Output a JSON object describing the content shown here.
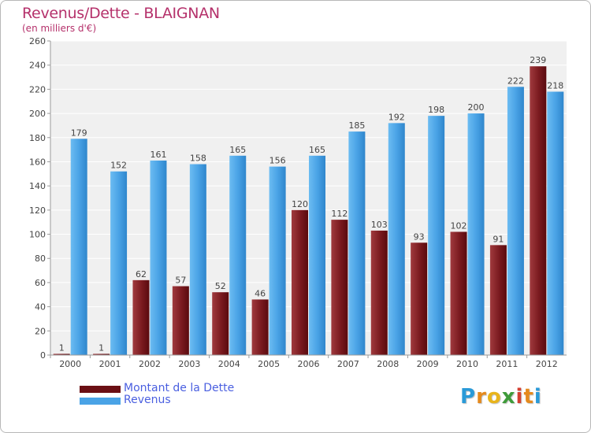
{
  "title": "Revenus/Dette - BLAIGNAN",
  "subtitle": "(en milliers d'€)",
  "logo_text": "Proxiti",
  "colors": {
    "dette": "#7a1a1f",
    "revenus": "#4aa3e6",
    "title": "#b5316b",
    "legend_text": "#4a5fe0"
  },
  "legend": [
    {
      "label": "Montant de la Dette",
      "color": "#6b0f14"
    },
    {
      "label": "Revenus",
      "color": "#4aa3e6"
    }
  ],
  "chart_data": {
    "type": "bar",
    "title": "Revenus/Dette - BLAIGNAN",
    "subtitle": "(en milliers d'€)",
    "categories": [
      "2000",
      "2001",
      "2002",
      "2003",
      "2004",
      "2005",
      "2006",
      "2007",
      "2008",
      "2009",
      "2010",
      "2011",
      "2012"
    ],
    "series": [
      {
        "name": "Montant de la Dette",
        "values": [
          1,
          1,
          62,
          57,
          52,
          46,
          120,
          112,
          103,
          93,
          102,
          91,
          239
        ]
      },
      {
        "name": "Revenus",
        "values": [
          179,
          152,
          161,
          158,
          165,
          156,
          165,
          185,
          192,
          198,
          200,
          222,
          218
        ]
      }
    ],
    "ylim": [
      0,
      260
    ],
    "yticks": [
      0,
      20,
      40,
      60,
      80,
      100,
      120,
      140,
      160,
      180,
      200,
      220,
      240,
      260
    ],
    "grid": true,
    "legend_position": "bottom-left"
  }
}
